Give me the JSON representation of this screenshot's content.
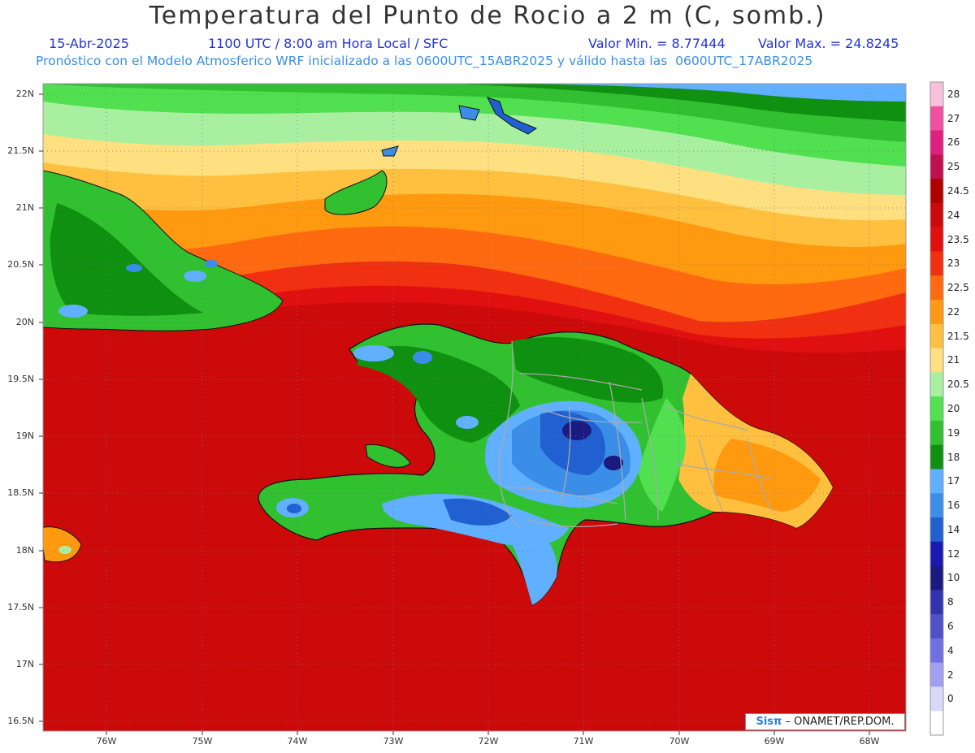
{
  "header": {
    "title": "Temperatura del Punto de Rocio a 2 m (C, somb.)",
    "date": "15-Abr-2025",
    "time_info": "1100 UTC / 8:00 am Hora Local / SFC",
    "value_min": "Valor Min. = 8.77444",
    "value_max": "Valor Max. = 24.8245",
    "model_info": "Pronóstico con el Modelo Atmosferico WRF inicializado a las 0600UTC_15ABR2025 y válido hasta las  0600UTC_17ABR2025"
  },
  "axes": {
    "lat_labels": [
      "22N",
      "21.5N",
      "21N",
      "20.5N",
      "20N",
      "19.5N",
      "19N",
      "18.5N",
      "18N",
      "17.5N",
      "17N",
      "16.5N"
    ],
    "lon_labels": [
      "76W",
      "75W",
      "74W",
      "73W",
      "72W",
      "71W",
      "70W",
      "69W",
      "68W"
    ]
  },
  "colorbar": {
    "levels": [
      "28",
      "27",
      "26",
      "25",
      "24.5",
      "24",
      "23.5",
      "23",
      "22.5",
      "22",
      "21.5",
      "21",
      "20.5",
      "20",
      "19",
      "18",
      "17",
      "16",
      "14",
      "12",
      "10",
      "8",
      "6",
      "4",
      "2",
      "0"
    ],
    "colors": [
      "#f7c0dc",
      "#f050a0",
      "#e02080",
      "#c01050",
      "#b00000",
      "#cc0a0a",
      "#e01010",
      "#f03010",
      "#ff6a10",
      "#ff9a10",
      "#ffc040",
      "#ffe080",
      "#a8f0a0",
      "#50e050",
      "#30c030",
      "#109010",
      "#60b0ff",
      "#3a8ee8",
      "#2060d0",
      "#1a1ab0",
      "#1a1a80",
      "#3333b0",
      "#5050c8",
      "#7070e0",
      "#a0a0f0",
      "#d8d8f8",
      "#ffffff"
    ]
  },
  "credit": {
    "logo": "Sisπ",
    "text": "– ONAMET/REP.DOM."
  }
}
